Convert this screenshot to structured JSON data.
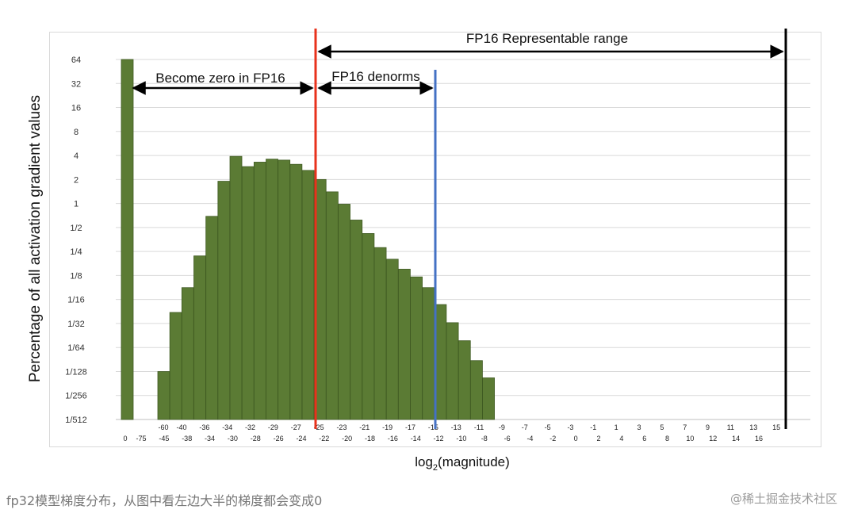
{
  "chart_data": {
    "type": "bar",
    "ylabel": "Percentage of all activation gradient values",
    "xlabel": "log2(magnitude)",
    "y_scale": "log2",
    "y_ticks": [
      "1/512",
      "1/256",
      "1/128",
      "1/64",
      "1/32",
      "1/16",
      "1/8",
      "1/4",
      "1/2",
      "1",
      "2",
      "4",
      "8",
      "16",
      "32",
      "64"
    ],
    "x_ticks_top": [
      "-60",
      "-40",
      "-36",
      "-34",
      "-32",
      "-29",
      "-27",
      "-25",
      "-23",
      "-21",
      "-19",
      "-17",
      "-15",
      "-13",
      "-11",
      "-9",
      "-7",
      "-5",
      "-3",
      "-1",
      "1",
      "3",
      "5",
      "7",
      "9",
      "11",
      "13",
      "15"
    ],
    "x_ticks_bottom": [
      "0",
      "-75",
      "-45",
      "-38",
      "-34",
      "-30",
      "-28",
      "-26",
      "-24",
      "-22",
      "-20",
      "-18",
      "-16",
      "-14",
      "-12",
      "-10",
      "-8",
      "-6",
      "-4",
      "-2",
      "0",
      "2",
      "4",
      "6",
      "8",
      "10",
      "12",
      "14",
      "16"
    ],
    "bars": [
      {
        "x": "0",
        "value": 64
      },
      {
        "x": "-60",
        "value": 0.0078
      },
      {
        "x": "-45",
        "value": 0.043
      },
      {
        "x": "-40",
        "value": 0.088
      },
      {
        "x": "-38",
        "value": 0.22
      },
      {
        "x": "-36",
        "value": 0.69
      },
      {
        "x": "-34",
        "value": 1.9
      },
      {
        "x": "-32",
        "value": 3.9
      },
      {
        "x": "-30",
        "value": 2.9
      },
      {
        "x": "-29",
        "value": 3.3
      },
      {
        "x": "-28",
        "value": 3.6
      },
      {
        "x": "-27",
        "value": 3.5
      },
      {
        "x": "-26",
        "value": 3.1
      },
      {
        "x": "-25",
        "value": 2.6
      },
      {
        "x": "-24",
        "value": 2.0
      },
      {
        "x": "-23",
        "value": 1.4
      },
      {
        "x": "-22",
        "value": 0.98
      },
      {
        "x": "-21",
        "value": 0.62
      },
      {
        "x": "-20",
        "value": 0.42
      },
      {
        "x": "-19",
        "value": 0.28
      },
      {
        "x": "-18",
        "value": 0.2
      },
      {
        "x": "-17",
        "value": 0.15
      },
      {
        "x": "-16",
        "value": 0.12
      },
      {
        "x": "-15",
        "value": 0.088
      },
      {
        "x": "-14",
        "value": 0.054
      },
      {
        "x": "-13",
        "value": 0.032
      },
      {
        "x": "-12",
        "value": 0.019
      },
      {
        "x": "-11",
        "value": 0.0107
      },
      {
        "x": "-10",
        "value": 0.0065
      }
    ],
    "markers": [
      {
        "name": "red-line",
        "x": "-24",
        "color": "#e8321c"
      },
      {
        "name": "blue-line",
        "x": "-14",
        "color": "#4472c4"
      },
      {
        "name": "black-line",
        "x": "15",
        "color": "#000000"
      }
    ],
    "annotations": {
      "zero": "Become zero in FP16",
      "denorms": "FP16 denorms",
      "range": "FP16 Representable range"
    },
    "bar_color": "#5b7b34",
    "bar_edge": "#3f5a22",
    "grid": true,
    "legend": "none"
  },
  "caption": "fp32模型梯度分布，从图中看左边大半的梯度都会变成0",
  "watermark": "@稀土掘金技术社区"
}
